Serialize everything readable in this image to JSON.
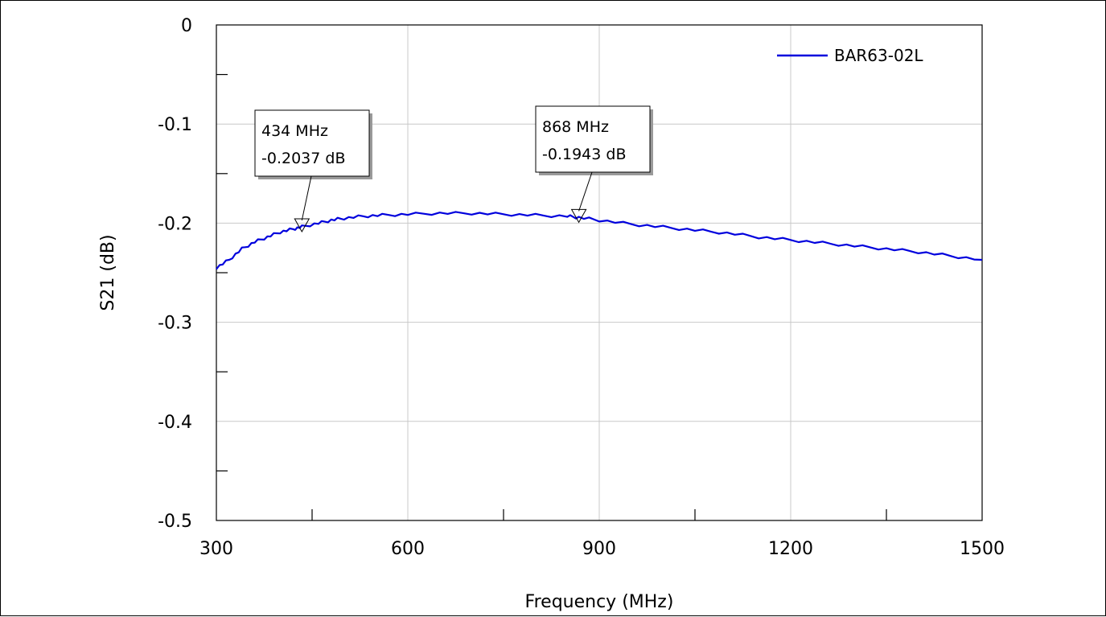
{
  "chart_data": {
    "type": "line",
    "title": "",
    "xlabel": "Frequency (MHz)",
    "ylabel": "S21 (dB)",
    "xlim": [
      300,
      1500
    ],
    "ylim": [
      -0.5,
      0
    ],
    "x_ticks": [
      300,
      600,
      900,
      1200,
      1500
    ],
    "x_tick_labels": [
      "300",
      "600",
      "900",
      "1200",
      "1500"
    ],
    "y_ticks": [
      0,
      -0.1,
      -0.2,
      -0.3,
      -0.4,
      -0.5
    ],
    "y_tick_labels": [
      "0",
      "-0.1",
      "-0.2",
      "-0.3",
      "-0.4",
      "-0.5"
    ],
    "grid": true,
    "legend_position": "top-right",
    "series": [
      {
        "name": "BAR63-02L",
        "color": "#0000dd",
        "x": [
          300,
          320,
          340,
          360,
          380,
          400,
          420,
          434,
          460,
          480,
          500,
          530,
          560,
          600,
          650,
          700,
          750,
          800,
          850,
          868,
          900,
          950,
          1000,
          1050,
          1100,
          1150,
          1200,
          1250,
          1300,
          1350,
          1400,
          1450,
          1500
        ],
        "y": [
          -0.245,
          -0.237,
          -0.226,
          -0.219,
          -0.214,
          -0.209,
          -0.206,
          -0.2037,
          -0.2,
          -0.197,
          -0.195,
          -0.193,
          -0.192,
          -0.191,
          -0.19,
          -0.19,
          -0.191,
          -0.192,
          -0.193,
          -0.1943,
          -0.197,
          -0.201,
          -0.204,
          -0.207,
          -0.21,
          -0.214,
          -0.217,
          -0.22,
          -0.223,
          -0.226,
          -0.229,
          -0.233,
          -0.237
        ]
      }
    ],
    "markers": [
      {
        "x": 434,
        "y": -0.2037,
        "label_freq": "434 MHz",
        "label_value": "-0.2037 dB"
      },
      {
        "x": 868,
        "y": -0.1943,
        "label_freq": "868 MHz",
        "label_value": "-0.1943 dB"
      }
    ]
  }
}
